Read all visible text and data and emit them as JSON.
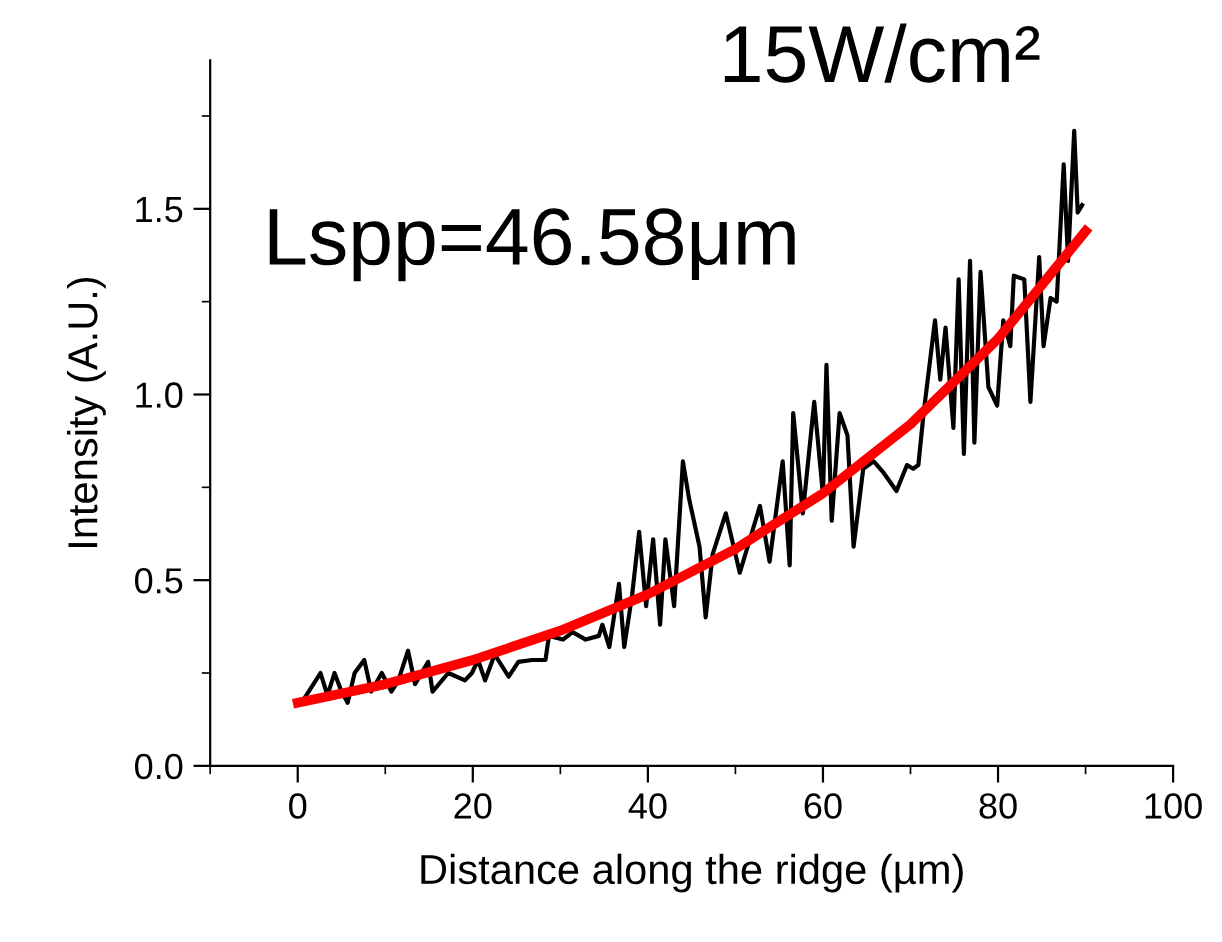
{
  "chart_data": {
    "type": "line",
    "title": "15W/cm²",
    "xlabel": "Distance along the ridge (µm)",
    "ylabel": "Intensity (A.U.)",
    "annotations": [
      "Lspp=46.58μm"
    ],
    "series": [
      {
        "color": "#000000",
        "x": [
          0.7,
          2.6,
          3.4,
          4.2,
          5,
          5.7,
          6.5,
          7.6,
          8.4,
          9.6,
          10.7,
          11.5,
          12.6,
          13.4,
          14.9,
          15.4,
          17.2,
          19.1,
          19.9,
          20.6,
          21.4,
          22.5,
          24.1,
          25.2,
          26.8,
          28.3,
          28.7,
          30.3,
          31.4,
          32.9,
          34.4,
          34.8,
          35.6,
          36.7,
          37.3,
          38.2,
          39,
          39.8,
          40.6,
          41.4,
          42,
          43,
          44,
          44.7,
          45.9,
          46.6,
          47.4,
          48.9,
          50.5,
          52.8,
          53.9,
          55.4,
          56.2,
          56.6,
          57.7,
          59,
          60,
          60.4,
          61,
          61.9,
          62.8,
          63.5,
          64.6,
          65.8,
          66.9,
          68.4,
          69.6,
          70.3,
          70.9,
          71.5,
          72.8,
          73.4,
          74,
          74.9,
          75.5,
          76.1,
          76.8,
          77.3,
          78,
          78.9,
          79.9,
          80.6,
          81.4,
          81.8,
          83,
          83.7,
          84.7,
          85.2,
          86,
          86.7,
          87.5,
          88,
          88.7,
          89.1,
          89.6
        ],
        "values": [
          0.18,
          0.25,
          0.19,
          0.25,
          0.2,
          0.17,
          0.25,
          0.285,
          0.2,
          0.25,
          0.2,
          0.23,
          0.31,
          0.22,
          0.28,
          0.2,
          0.25,
          0.23,
          0.25,
          0.285,
          0.23,
          0.3,
          0.24,
          0.28,
          0.285,
          0.285,
          0.35,
          0.34,
          0.36,
          0.34,
          0.35,
          0.38,
          0.32,
          0.49,
          0.32,
          0.46,
          0.63,
          0.43,
          0.61,
          0.38,
          0.61,
          0.43,
          0.82,
          0.72,
          0.59,
          0.4,
          0.57,
          0.68,
          0.52,
          0.7,
          0.55,
          0.82,
          0.54,
          0.95,
          0.68,
          0.98,
          0.73,
          1.08,
          0.66,
          0.95,
          0.89,
          0.59,
          0.8,
          0.82,
          0.79,
          0.74,
          0.81,
          0.8,
          0.81,
          0.95,
          1.2,
          1.04,
          1.18,
          0.91,
          1.31,
          0.84,
          1.36,
          0.87,
          1.33,
          1.02,
          0.97,
          1.2,
          1.13,
          1.32,
          1.31,
          0.98,
          1.37,
          1.13,
          1.26,
          1.25,
          1.62,
          1.36,
          1.71,
          1.49,
          1.51
        ]
      },
      {
        "color": "#ff0000",
        "x": [
          0,
          10,
          20,
          30,
          40,
          50,
          60,
          70,
          80,
          90
        ],
        "values": [
          0.17,
          0.22,
          0.285,
          0.364,
          0.462,
          0.584,
          0.734,
          0.92,
          1.15,
          1.44
        ]
      }
    ],
    "xlim": [
      -10,
      100
    ],
    "xticks": [
      0,
      20,
      40,
      60,
      80,
      100
    ],
    "ylim": [
      0,
      1.9
    ],
    "yticks": [
      {
        "value": 0,
        "label": "0.0"
      },
      {
        "value": 0.5,
        "label": "0.5"
      },
      {
        "value": 1.0,
        "label": "1.0"
      },
      {
        "value": 1.5,
        "label": "1.5"
      }
    ],
    "grid": false,
    "legend": false
  }
}
